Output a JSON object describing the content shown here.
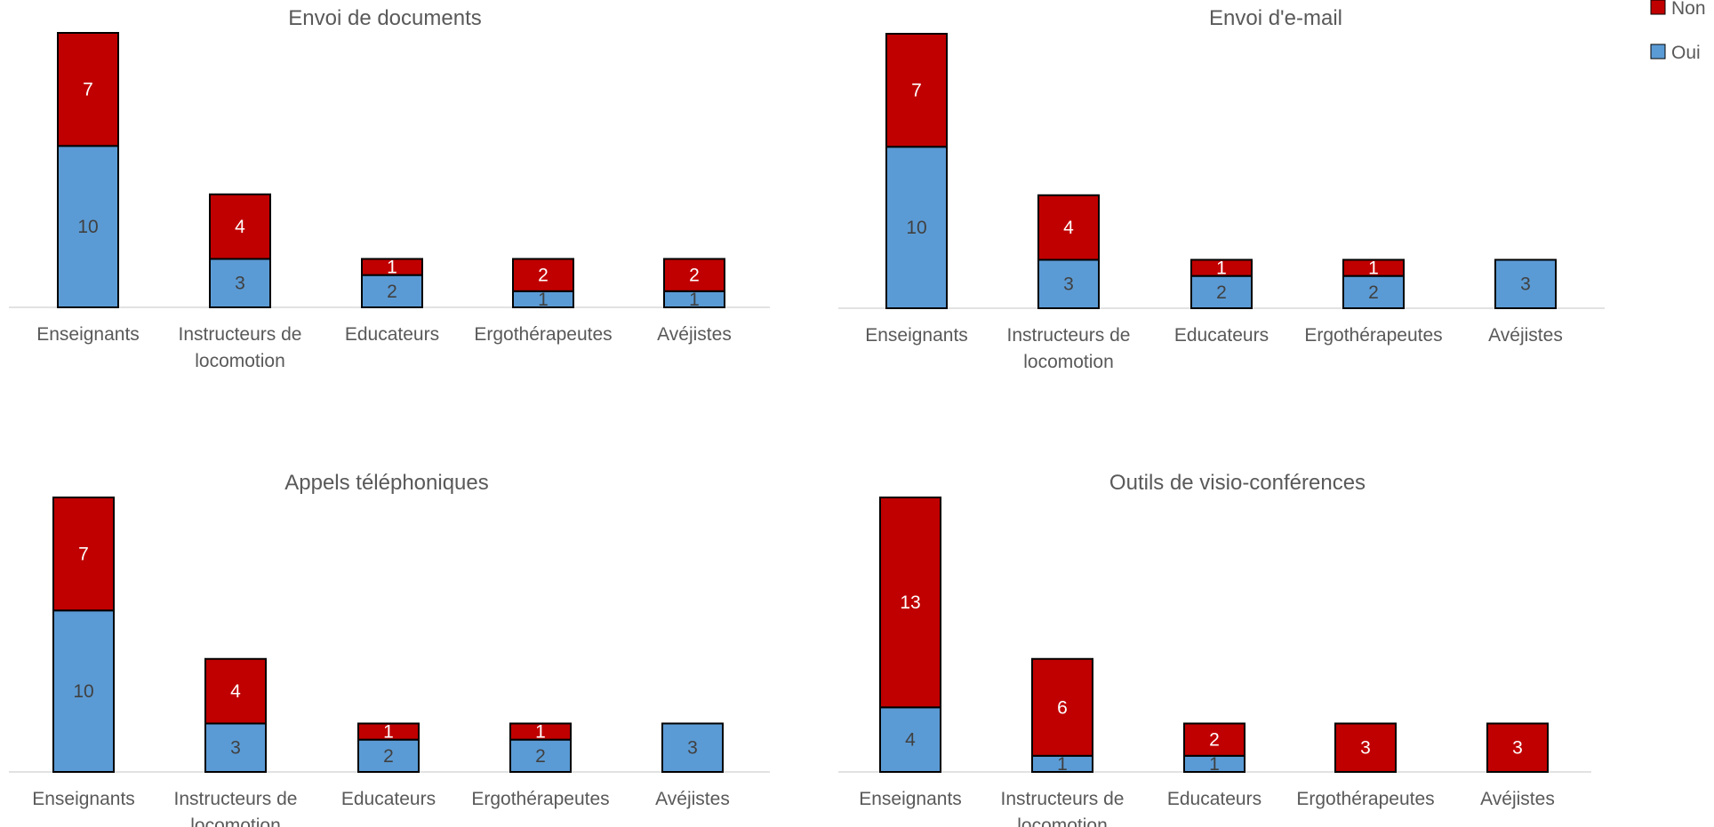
{
  "legend": [
    {
      "label": "Non",
      "color": "#C00000"
    },
    {
      "label": "Oui",
      "color": "#5B9BD5"
    }
  ],
  "colors": {
    "oui": "#5B9BD5",
    "non": "#C00000",
    "axis": "#D9D9D9",
    "text": "#595959",
    "border": "#000000"
  },
  "chart_data": [
    {
      "type": "bar",
      "stacked": true,
      "title": "Envoi de documents",
      "categories": [
        "Enseignants",
        "Instructeurs de locomotion",
        "Educateurs",
        "Ergothérapeutes",
        "Avéjistes"
      ],
      "series": [
        {
          "name": "Oui",
          "values": [
            10,
            3,
            2,
            1,
            1
          ]
        },
        {
          "name": "Non",
          "values": [
            7,
            4,
            1,
            2,
            2
          ]
        }
      ],
      "ylim": [
        0,
        17
      ]
    },
    {
      "type": "bar",
      "stacked": true,
      "title": "Envoi d'e-mail",
      "categories": [
        "Enseignants",
        "Instructeurs de locomotion",
        "Educateurs",
        "Ergothérapeutes",
        "Avéjistes"
      ],
      "series": [
        {
          "name": "Oui",
          "values": [
            10,
            3,
            2,
            2,
            3
          ]
        },
        {
          "name": "Non",
          "values": [
            7,
            4,
            1,
            1,
            0
          ]
        }
      ],
      "ylim": [
        0,
        17
      ]
    },
    {
      "type": "bar",
      "stacked": true,
      "title": "Appels téléphoniques",
      "categories": [
        "Enseignants",
        "Instructeurs de locomotion",
        "Educateurs",
        "Ergothérapeutes",
        "Avéjistes"
      ],
      "series": [
        {
          "name": "Oui",
          "values": [
            10,
            3,
            2,
            2,
            3
          ]
        },
        {
          "name": "Non",
          "values": [
            7,
            4,
            1,
            1,
            0
          ]
        }
      ],
      "ylim": [
        0,
        17
      ]
    },
    {
      "type": "bar",
      "stacked": true,
      "title": "Outils de visio-conférences",
      "categories": [
        "Enseignants",
        "Instructeurs de locomotion",
        "Educateurs",
        "Ergothérapeutes",
        "Avéjistes"
      ],
      "series": [
        {
          "name": "Oui",
          "values": [
            4,
            1,
            1,
            0,
            0
          ]
        },
        {
          "name": "Non",
          "values": [
            13,
            6,
            2,
            3,
            3
          ]
        }
      ],
      "ylim": [
        0,
        17
      ]
    }
  ]
}
